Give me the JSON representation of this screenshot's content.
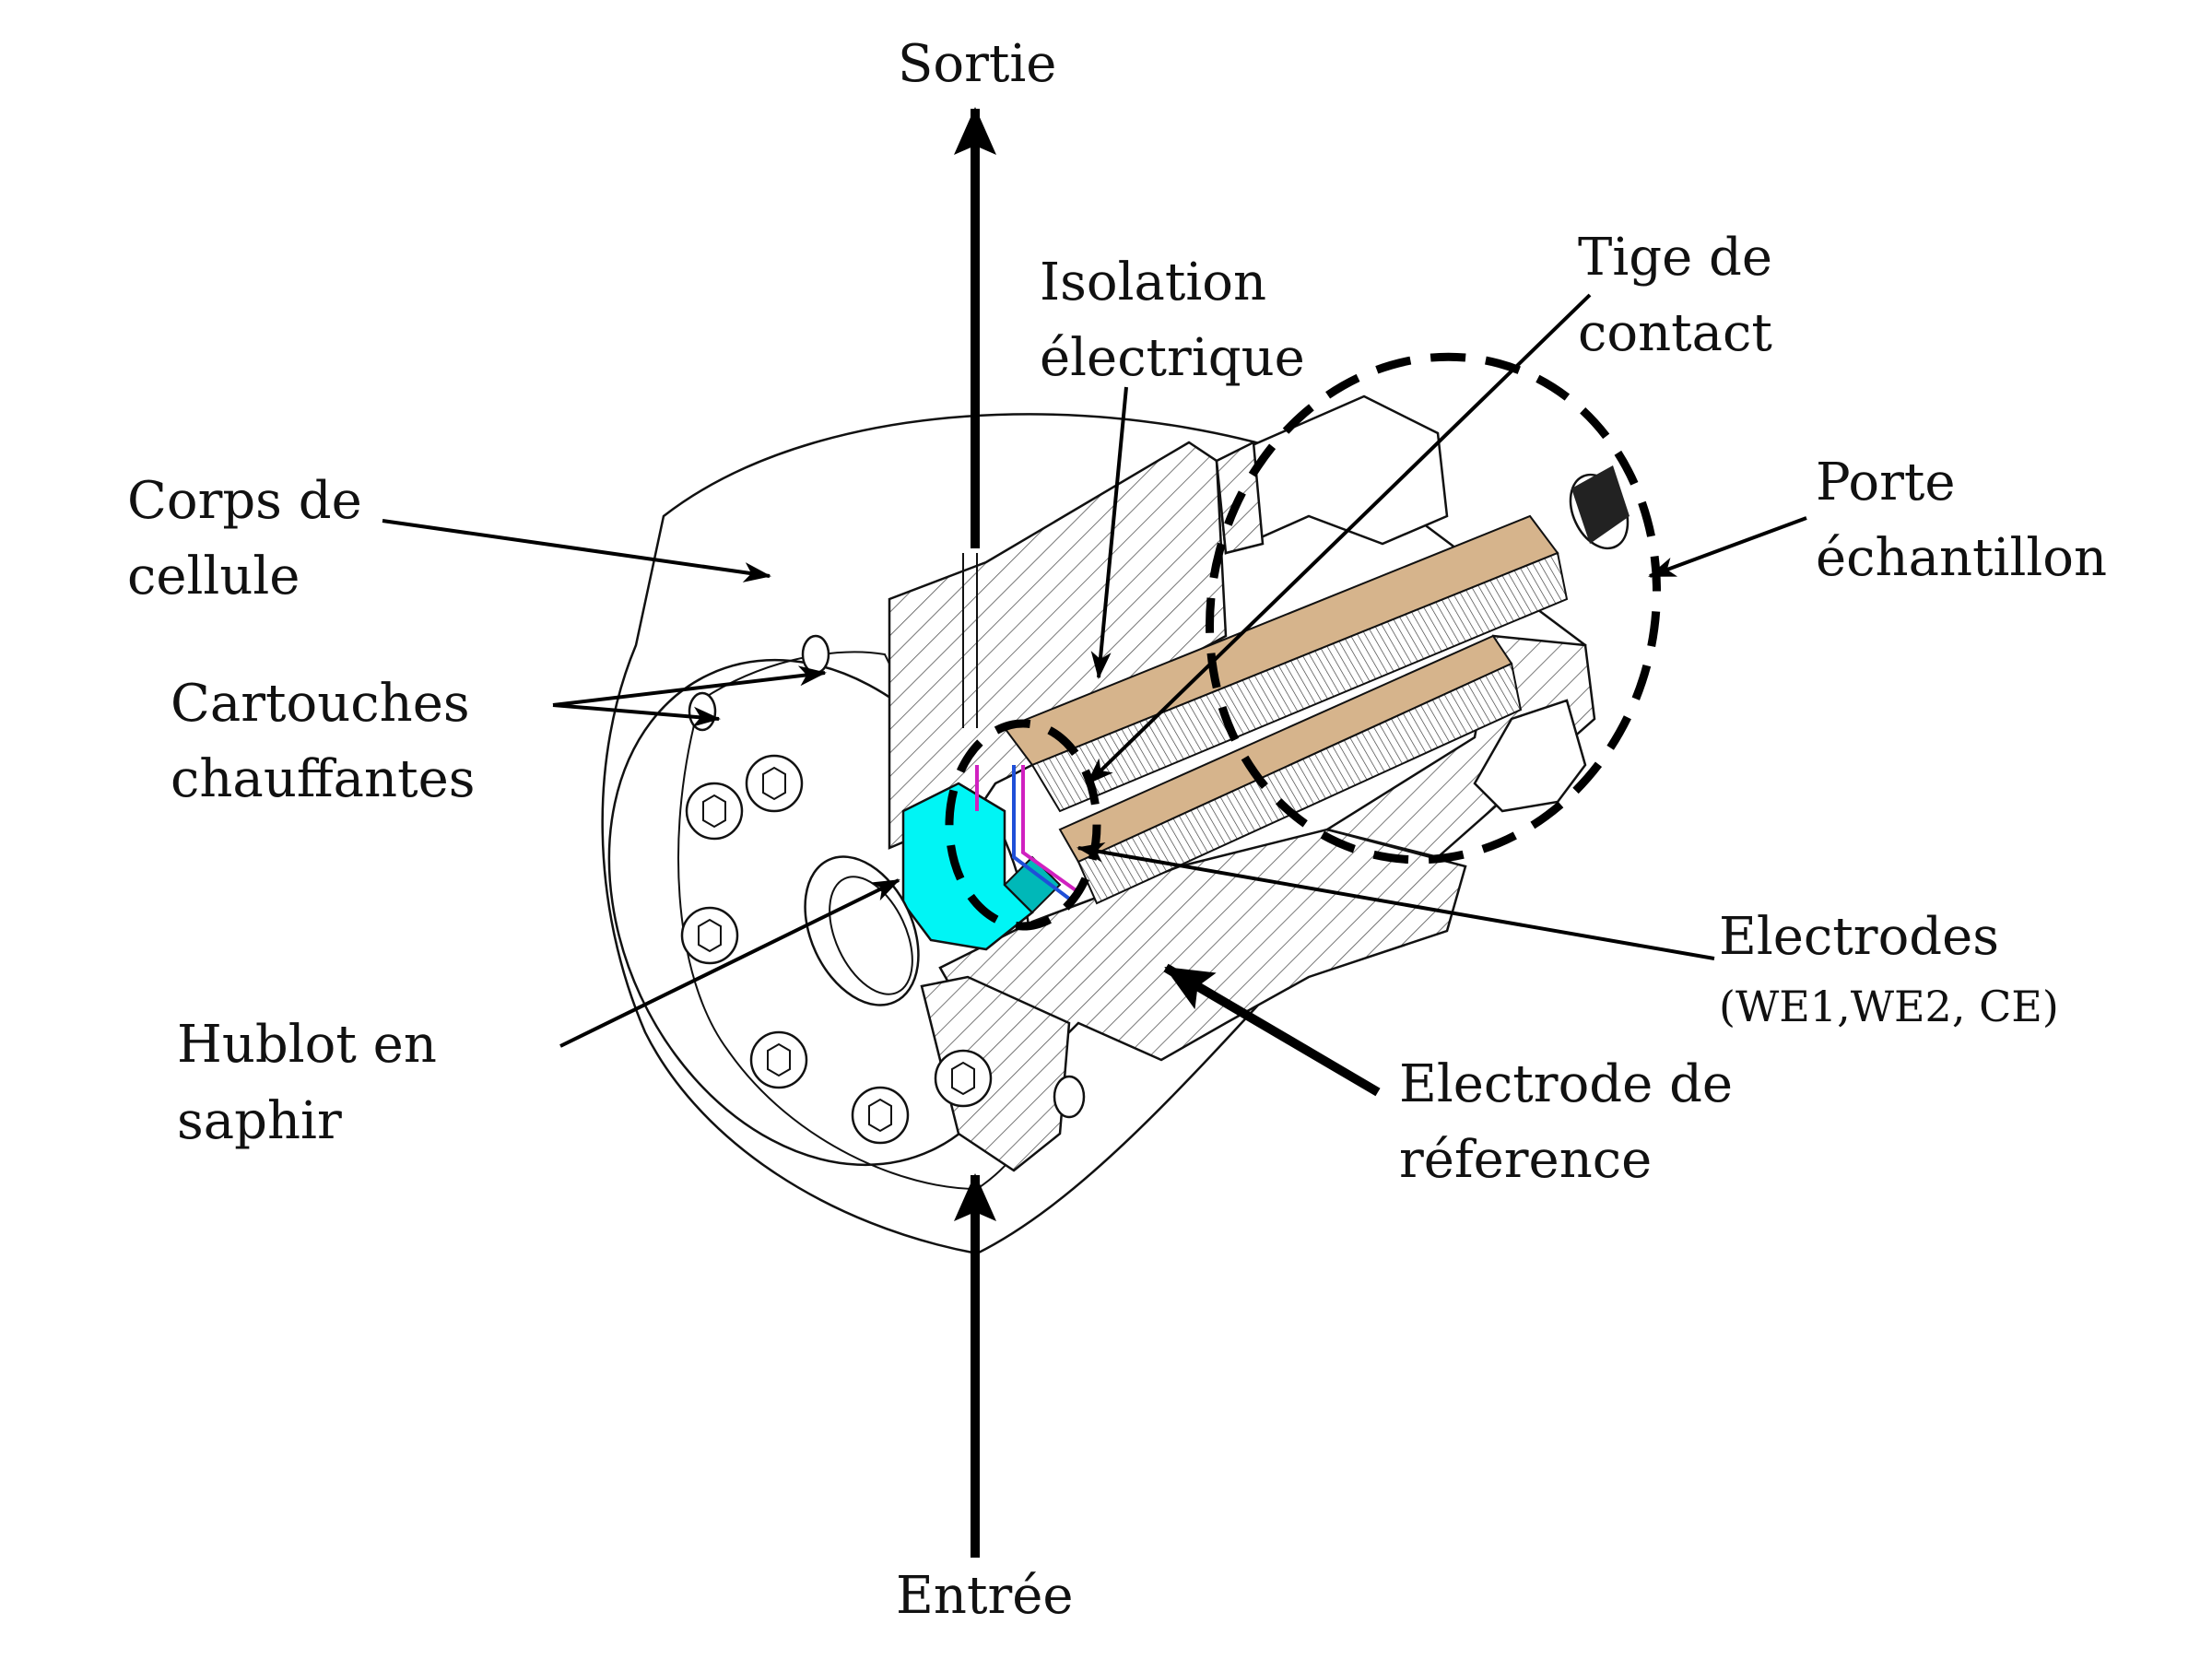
{
  "labels": {
    "sortie": "Sortie",
    "entree": "Entrée",
    "isolation_1": "Isolation",
    "isolation_2": "électrique",
    "tige_1": "Tige de",
    "tige_2": "contact",
    "corps_1": "Corps de",
    "corps_2": "cellule",
    "porte_1": "Porte",
    "porte_2": "échantillon",
    "cartouches_1": "Cartouches",
    "cartouches_2": "chauffantes",
    "electrodes_1": "Electrodes",
    "electrodes_2": "(WE1,WE2, CE)",
    "hublot_1": "Hublot en",
    "hublot_2": "saphir",
    "ref_1": "Electrode de",
    "ref_2": "réference"
  },
  "colors": {
    "sapphire": "#00f5f5",
    "insulation": "#d6b48c",
    "outline": "#111111",
    "electrode_blue": "#1f4fd8",
    "electrode_magenta": "#d020c0"
  }
}
